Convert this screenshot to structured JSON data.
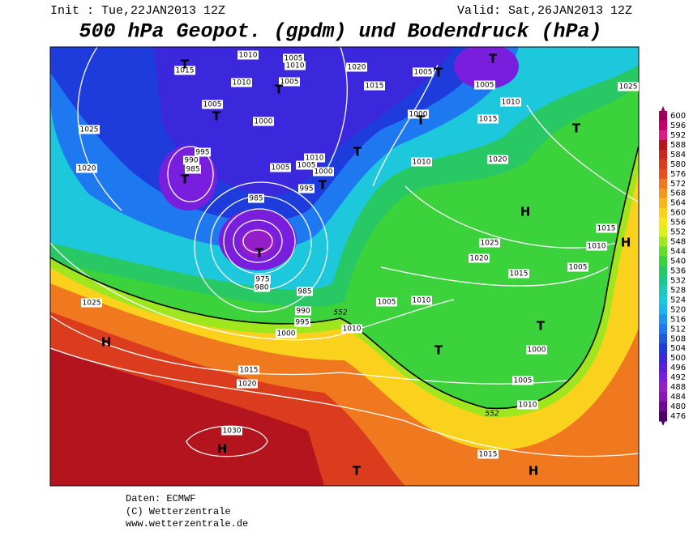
{
  "header": {
    "init": "Init : Tue,22JAN2013 12Z",
    "valid": "Valid: Sat,26JAN2013 12Z",
    "title": "500 hPa Geopot. (gpdm) und Bodendruck (hPa)"
  },
  "legend": {
    "levels": [
      600,
      596,
      592,
      588,
      584,
      580,
      576,
      572,
      568,
      564,
      560,
      556,
      552,
      548,
      544,
      540,
      536,
      532,
      528,
      524,
      520,
      516,
      512,
      508,
      504,
      500,
      496,
      492,
      488,
      484,
      480,
      476
    ],
    "colors": [
      "#a0005a",
      "#c8006e",
      "#dc1e82",
      "#b4141e",
      "#c8281e",
      "#dc3c1e",
      "#e6501e",
      "#f0781e",
      "#f5961e",
      "#fab41e",
      "#fad21e",
      "#f5e61e",
      "#dcf01e",
      "#a0e61e",
      "#64dc28",
      "#3cd23c",
      "#28c864",
      "#1ec88c",
      "#1ec8b4",
      "#1ec8dc",
      "#1eb4f0",
      "#1e96f0",
      "#1e78f0",
      "#1e5adc",
      "#1e3cdc",
      "#3c28dc",
      "#5a1edc",
      "#781edc",
      "#961ec8",
      "#8c14b4",
      "#6e0a96",
      "#50006e"
    ]
  },
  "map": {
    "isobar_labels": [
      1010,
      1005,
      1010,
      1015,
      1020,
      1005,
      1010,
      1005,
      1015,
      1005,
      1025,
      1010,
      1005,
      1000,
      1015,
      1000,
      1025,
      995,
      990,
      985,
      1010,
      1020,
      1005,
      1005,
      1020,
      1010,
      1000,
      995,
      985,
      1015,
      1025,
      1010,
      1020,
      1005,
      1015,
      975,
      980,
      985,
      1010,
      1005,
      1025,
      990,
      995,
      1010,
      1000,
      1000,
      1015,
      1020,
      1005,
      1010,
      1030,
      1015
    ],
    "geopotential_labels": [
      552,
      552
    ],
    "pressure_centers": [
      "T",
      "T",
      "T",
      "T",
      "T",
      "T",
      "T",
      "T",
      "T",
      "T",
      "T",
      "H",
      "H",
      "H",
      "T",
      "T",
      "H",
      "T",
      "H"
    ]
  },
  "footer": {
    "source": "Daten: ECMWF",
    "copyright": "(C) Wetterzentrale",
    "url": "www.wetterzentrale.de"
  }
}
